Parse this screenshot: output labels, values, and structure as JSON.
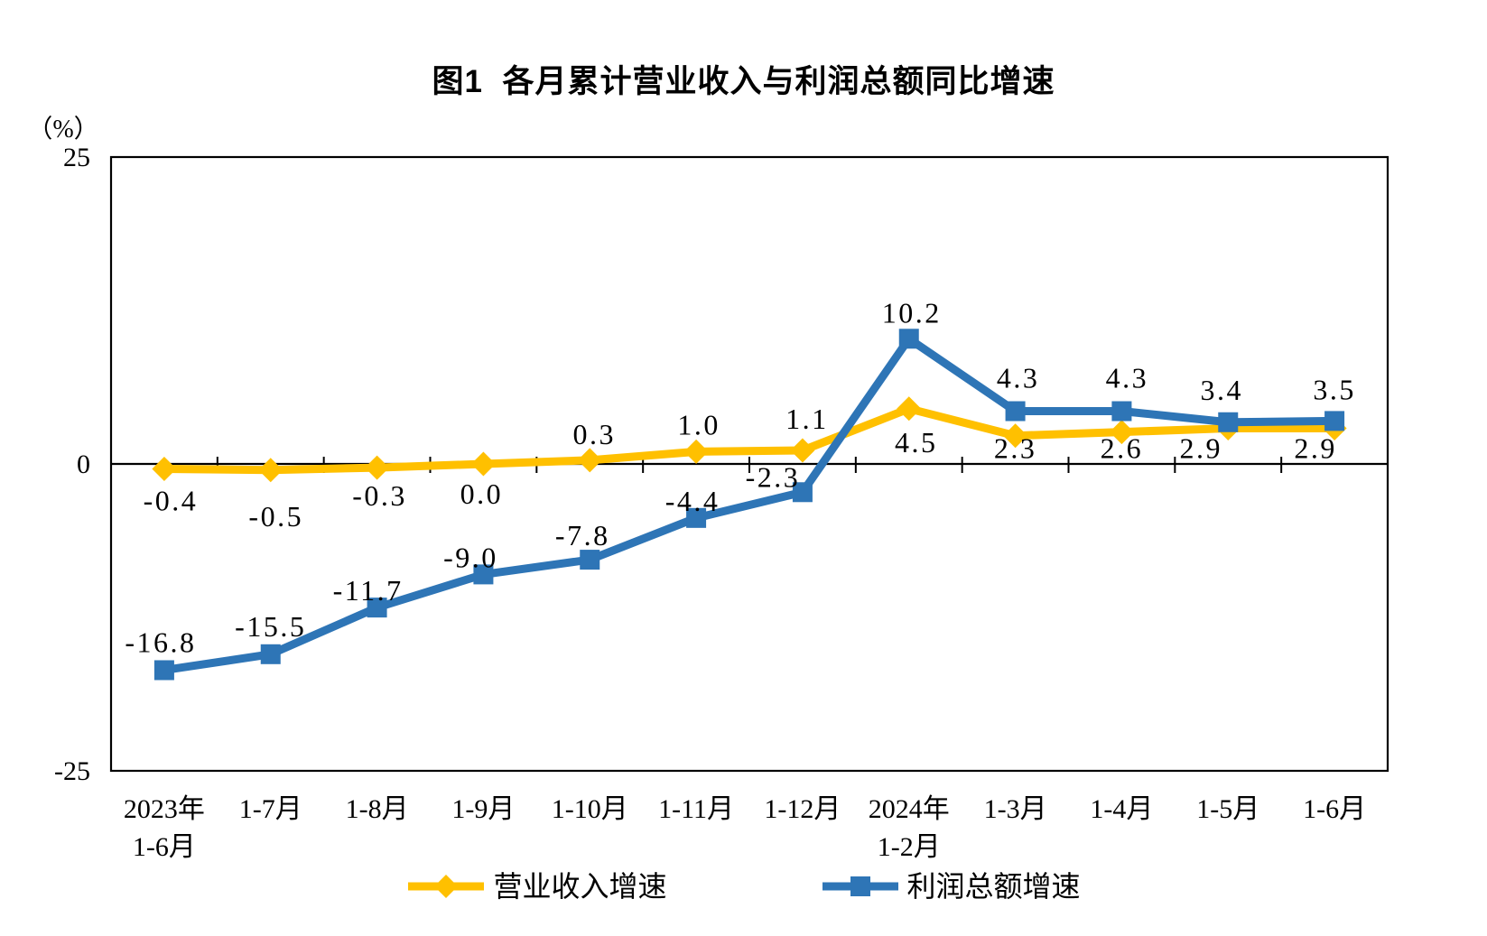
{
  "chart_data": {
    "type": "line",
    "title": "图1  各月累计营业收入与利润总额同比增速",
    "unit_label": "（%）",
    "categories": [
      [
        "2023年",
        "1-6月"
      ],
      [
        "1-7月"
      ],
      [
        "1-8月"
      ],
      [
        "1-9月"
      ],
      [
        "1-10月"
      ],
      [
        "1-11月"
      ],
      [
        "1-12月"
      ],
      [
        "2024年",
        "1-2月"
      ],
      [
        "1-3月"
      ],
      [
        "1-4月"
      ],
      [
        "1-5月"
      ],
      [
        "1-6月"
      ]
    ],
    "series": [
      {
        "name": "营业收入增速",
        "color": "#FFC000",
        "marker": "diamond",
        "values": [
          -0.4,
          -0.5,
          -0.3,
          0.0,
          0.3,
          1.0,
          1.1,
          4.5,
          2.3,
          2.6,
          2.9,
          2.9
        ]
      },
      {
        "name": "利润总额增速",
        "color": "#2E75B6",
        "marker": "square",
        "values": [
          -16.8,
          -15.5,
          -11.7,
          -9.0,
          -7.8,
          -4.4,
          -2.3,
          10.2,
          4.3,
          4.3,
          3.4,
          3.5
        ]
      }
    ],
    "ylim": [
      -25,
      25
    ],
    "y_ticks": [
      25,
      0,
      -25
    ],
    "axis_color": "#000000",
    "grid": false,
    "legend_position": "bottom"
  }
}
